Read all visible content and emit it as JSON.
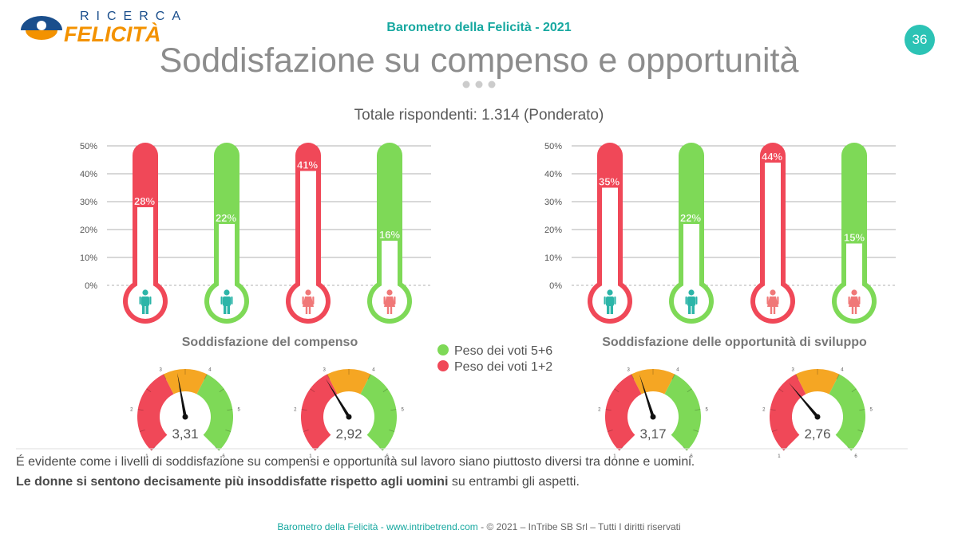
{
  "logo": {
    "top": "RICERCA",
    "main": "FELICITÀ"
  },
  "header": {
    "title": "Barometro della Felicità - 2021",
    "page_number": "36"
  },
  "title": "Soddisfazione su compenso e opportunità",
  "subtitle": "Totale rispondenti: 1.314 (Ponderato)",
  "legend": [
    {
      "label": "Peso dei voti 5+6",
      "color": "#7ed957"
    },
    {
      "label": "Peso dei voti 1+2",
      "color": "#f04858"
    }
  ],
  "colors": {
    "red": "#f04858",
    "green": "#7ed957",
    "gauge_orange": "#f5a623",
    "teal": "#2cb5a8",
    "pink": "#f07878"
  },
  "chart_data": [
    {
      "type": "bar",
      "title": "Soddisfazione del compenso",
      "ytick_labels": [
        "0%",
        "10%",
        "20%",
        "30%",
        "40%",
        "50%"
      ],
      "ylim": [
        0,
        50
      ],
      "grid": true,
      "bars": [
        {
          "value": 28,
          "label": "28%",
          "color": "red",
          "icon": "male-icon"
        },
        {
          "value": 22,
          "label": "22%",
          "color": "green",
          "icon": "male-icon"
        },
        {
          "value": 41,
          "label": "41%",
          "color": "red",
          "icon": "female-icon"
        },
        {
          "value": 16,
          "label": "16%",
          "color": "green",
          "icon": "female-icon"
        }
      ],
      "gauges": [
        {
          "value": 3.31,
          "label": "3,31"
        },
        {
          "value": 2.92,
          "label": "2,92"
        }
      ]
    },
    {
      "type": "bar",
      "title": "Soddisfazione delle opportunità di sviluppo",
      "ytick_labels": [
        "0%",
        "10%",
        "20%",
        "30%",
        "40%",
        "50%"
      ],
      "ylim": [
        0,
        50
      ],
      "grid": true,
      "bars": [
        {
          "value": 35,
          "label": "35%",
          "color": "red",
          "icon": "male-icon"
        },
        {
          "value": 22,
          "label": "22%",
          "color": "green",
          "icon": "male-icon"
        },
        {
          "value": 44,
          "label": "44%",
          "color": "red",
          "icon": "female-icon"
        },
        {
          "value": 15,
          "label": "15%",
          "color": "green",
          "icon": "female-icon"
        }
      ],
      "gauges": [
        {
          "value": 3.17,
          "label": "3,17"
        },
        {
          "value": 2.76,
          "label": "2,76"
        }
      ]
    }
  ],
  "gauge_scale": {
    "min": 1,
    "max": 6,
    "tick_labels": [
      "1",
      "2",
      "3",
      "4",
      "5",
      "6"
    ]
  },
  "body": {
    "line1": "É evidente come i livelli di soddisfazione su compensi e opportunità sul lavoro siano piuttosto diversi tra donne e uomini.",
    "line2_bold": "Le donne si sentono decisamente più insoddisfatte rispetto agli uomini",
    "line2_rest": " su entrambi gli aspetti."
  },
  "footer": {
    "teal": "Barometro della Felicità - www.intribetrend.com",
    "sep": " - ",
    "rest": "© 2021 – InTribe SB Srl – Tutti I diritti riservati"
  }
}
